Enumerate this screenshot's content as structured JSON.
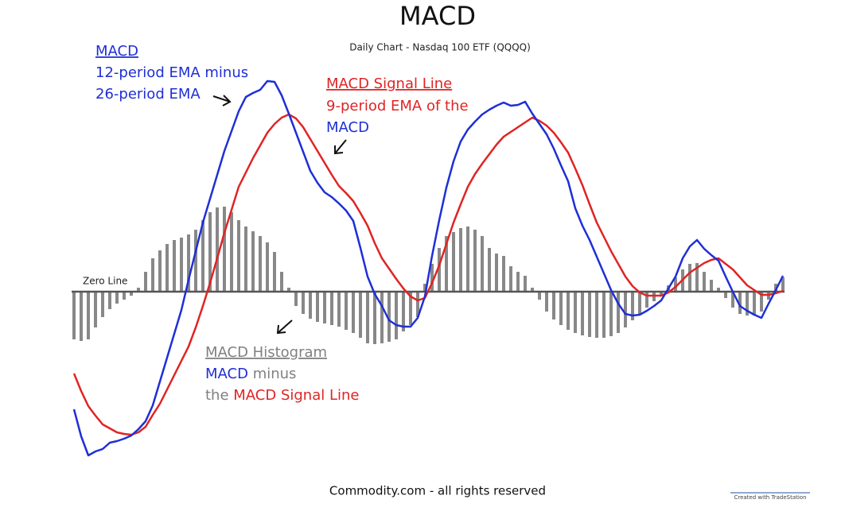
{
  "chart_data": {
    "type": "line",
    "title": "MACD",
    "subtitle": "Daily Chart - Nasdaq 100 ETF (QQQQ)",
    "ylim": [
      -2.3,
      3
    ],
    "yticks": [
      {
        "value": 0,
        "label": "Zero Line"
      }
    ],
    "grid": true,
    "series": [
      {
        "name": "MACD",
        "color": "#1f2fd6",
        "values": [
          -1.48,
          -1.82,
          -2.06,
          -2.01,
          -1.98,
          -1.9,
          -1.88,
          -1.85,
          -1.81,
          -1.73,
          -1.63,
          -1.43,
          -1.13,
          -0.83,
          -0.53,
          -0.23,
          0.15,
          0.51,
          0.87,
          1.17,
          1.47,
          1.77,
          2.02,
          2.27,
          2.45,
          2.5,
          2.54,
          2.65,
          2.64,
          2.47,
          2.24,
          2.0,
          1.76,
          1.52,
          1.37,
          1.25,
          1.19,
          1.11,
          1.02,
          0.89,
          0.55,
          0.19,
          -0.03,
          -0.18,
          -0.36,
          -0.42,
          -0.44,
          -0.44,
          -0.33,
          -0.06,
          0.45,
          0.9,
          1.31,
          1.64,
          1.89,
          2.04,
          2.14,
          2.23,
          2.29,
          2.34,
          2.38,
          2.34,
          2.35,
          2.39,
          2.24,
          2.11,
          1.98,
          1.8,
          1.59,
          1.39,
          1.05,
          0.83,
          0.65,
          0.44,
          0.23,
          0.02,
          -0.15,
          -0.28,
          -0.3,
          -0.29,
          -0.24,
          -0.18,
          -0.11,
          0.04,
          0.19,
          0.42,
          0.57,
          0.65,
          0.54,
          0.46,
          0.39,
          0.19,
          0.0,
          -0.18,
          -0.24,
          -0.29,
          -0.33,
          -0.15,
          0.02,
          0.2
        ]
      },
      {
        "name": "MACD Signal Line",
        "color": "#e02424",
        "values": [
          -1.03,
          -1.25,
          -1.44,
          -1.56,
          -1.67,
          -1.72,
          -1.77,
          -1.79,
          -1.8,
          -1.77,
          -1.7,
          -1.55,
          -1.41,
          -1.23,
          -1.05,
          -0.87,
          -0.69,
          -0.45,
          -0.18,
          0.11,
          0.42,
          0.74,
          1.03,
          1.32,
          1.5,
          1.68,
          1.84,
          2.0,
          2.11,
          2.19,
          2.23,
          2.18,
          2.07,
          1.92,
          1.77,
          1.62,
          1.47,
          1.33,
          1.24,
          1.14,
          0.99,
          0.83,
          0.61,
          0.42,
          0.29,
          0.16,
          0.04,
          -0.06,
          -0.11,
          -0.08,
          0.11,
          0.33,
          0.6,
          0.87,
          1.1,
          1.32,
          1.48,
          1.61,
          1.73,
          1.85,
          1.95,
          2.01,
          2.07,
          2.13,
          2.19,
          2.15,
          2.09,
          2.0,
          1.88,
          1.75,
          1.55,
          1.34,
          1.1,
          0.87,
          0.69,
          0.51,
          0.35,
          0.19,
          0.07,
          -0.01,
          -0.05,
          -0.05,
          -0.05,
          -0.01,
          0.06,
          0.15,
          0.24,
          0.3,
          0.36,
          0.4,
          0.42,
          0.35,
          0.28,
          0.18,
          0.08,
          0.02,
          -0.04,
          -0.04,
          -0.02,
          0.01
        ]
      }
    ],
    "histogram": {
      "name": "MACD Histogram",
      "color": "#888888",
      "values": [
        -0.6,
        -0.62,
        -0.6,
        -0.45,
        -0.32,
        -0.22,
        -0.15,
        -0.1,
        -0.05,
        0.05,
        0.25,
        0.42,
        0.52,
        0.6,
        0.65,
        0.68,
        0.72,
        0.78,
        0.9,
        1.0,
        1.06,
        1.07,
        1.0,
        0.9,
        0.82,
        0.76,
        0.7,
        0.62,
        0.5,
        0.25,
        0.05,
        -0.18,
        -0.28,
        -0.34,
        -0.38,
        -0.4,
        -0.42,
        -0.44,
        -0.48,
        -0.52,
        -0.58,
        -0.65,
        -0.66,
        -0.65,
        -0.63,
        -0.6,
        -0.5,
        -0.42,
        -0.32,
        0.1,
        0.35,
        0.55,
        0.7,
        0.75,
        0.8,
        0.82,
        0.78,
        0.7,
        0.55,
        0.48,
        0.45,
        0.32,
        0.25,
        0.2,
        0.05,
        -0.1,
        -0.25,
        -0.35,
        -0.42,
        -0.48,
        -0.52,
        -0.55,
        -0.57,
        -0.58,
        -0.58,
        -0.56,
        -0.52,
        -0.45,
        -0.36,
        -0.28,
        -0.2,
        -0.12,
        -0.05,
        0.08,
        0.18,
        0.28,
        0.35,
        0.36,
        0.25,
        0.15,
        0.05,
        -0.08,
        -0.2,
        -0.28,
        -0.3,
        -0.3,
        -0.25,
        -0.1,
        0.1,
        0.18
      ]
    },
    "annotations": {
      "macd": {
        "title": "MACD",
        "line1": "12-period EMA minus",
        "line2": "26-period EMA"
      },
      "signal": {
        "title": "MACD Signal Line",
        "line1": "9-period EMA of the",
        "line2": "MACD"
      },
      "histogram": {
        "title": "MACD Histogram",
        "line1a": "MACD",
        "line1b": " minus",
        "line2a": "the ",
        "line2b": "MACD Signal Line"
      }
    },
    "footer": "Commodity.com - all rights reserved",
    "watermark": "Created with TradeStation"
  }
}
